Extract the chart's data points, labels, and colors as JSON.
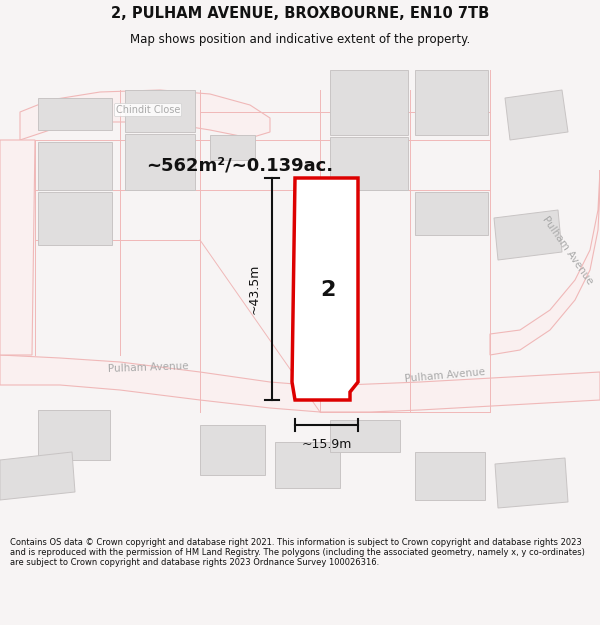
{
  "title": "2, PULHAM AVENUE, BROXBOURNE, EN10 7TB",
  "subtitle": "Map shows position and indicative extent of the property.",
  "area_label": "~562m²/~0.139ac.",
  "plot_number": "2",
  "dim_width": "~15.9m",
  "dim_height": "~43.5m",
  "footer": "Contains OS data © Crown copyright and database right 2021. This information is subject to Crown copyright and database rights 2023 and is reproduced with the permission of HM Land Registry. The polygons (including the associated geometry, namely x, y co-ordinates) are subject to Crown copyright and database rights 2023 Ordnance Survey 100026316.",
  "bg_color": "#f7f4f4",
  "map_bg": "#ffffff",
  "road_color": "#f0b8b8",
  "road_fill": "#faf0f0",
  "building_fill": "#e0dede",
  "building_edge": "#c8c4c4",
  "plot_fill": "#ffffff",
  "plot_edge": "#dd0000",
  "dim_color": "#111111",
  "road_label_color": "#aaaaaa",
  "label_bg": "#ffffff"
}
